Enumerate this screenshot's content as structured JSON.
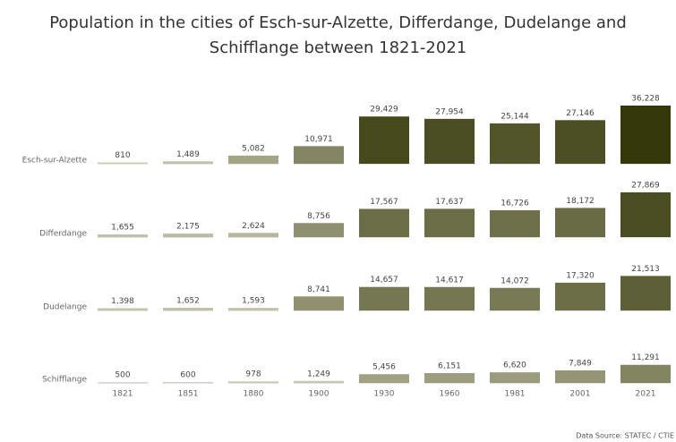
{
  "chart_data": {
    "type": "bar",
    "title": "Population in the cities of Esch-sur-Alzette, Differdange, Dudelange and Schifflange between 1821-2021",
    "categories": [
      "1821",
      "1851",
      "1880",
      "1900",
      "1930",
      "1960",
      "1981",
      "2001",
      "2021"
    ],
    "series": [
      {
        "name": "Esch-sur-Alzette",
        "values": [
          810,
          1489,
          5082,
          10971,
          29429,
          27954,
          25144,
          27146,
          36228
        ],
        "value_labels": [
          "810",
          "1,489",
          "5,082",
          "10,971",
          "29,429",
          "27,954",
          "25,144",
          "27,146",
          "36,228"
        ]
      },
      {
        "name": "Differdange",
        "values": [
          1655,
          2175,
          2624,
          8756,
          17567,
          17637,
          16726,
          18172,
          27869
        ],
        "value_labels": [
          "1,655",
          "2,175",
          "2,624",
          "8,756",
          "17,567",
          "17,637",
          "16,726",
          "18,172",
          "27,869"
        ]
      },
      {
        "name": "Dudelange",
        "values": [
          1398,
          1652,
          1593,
          8741,
          14657,
          14617,
          14072,
          17320,
          21513
        ],
        "value_labels": [
          "1,398",
          "1,652",
          "1,593",
          "8,741",
          "14,657",
          "14,617",
          "14,072",
          "17,320",
          "21,513"
        ]
      },
      {
        "name": "Schifflange",
        "values": [
          500,
          600,
          978,
          1249,
          5456,
          6151,
          6620,
          7849,
          11291
        ],
        "value_labels": [
          "500",
          "600",
          "978",
          "1,249",
          "5,456",
          "6,151",
          "6,620",
          "7,849",
          "11,291"
        ]
      }
    ],
    "color_range": [
      "#e6e6d2",
      "#343808"
    ],
    "source": "Data Source: STATEC / CTIE"
  }
}
